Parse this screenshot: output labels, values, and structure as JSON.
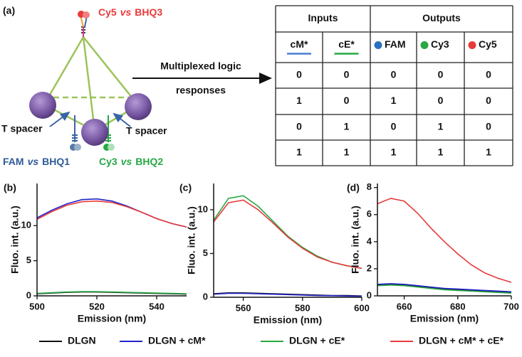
{
  "figure_a": {
    "panel": "(a)",
    "top_probe": [
      "Cy5",
      "vs",
      "BHQ3"
    ],
    "left_probe": [
      "FAM",
      "vs",
      "BHQ1"
    ],
    "right_probe": [
      "Cy3",
      "vs",
      "BHQ2"
    ],
    "spacer_left": "T spacer",
    "spacer_right": "T spacer",
    "arrow_label": [
      "Multiplexed logic",
      "responses"
    ]
  },
  "table": {
    "groups": [
      "Inputs",
      "Outputs"
    ],
    "columns": [
      "cM*",
      "cE*",
      "FAM",
      "Cy3",
      "Cy5"
    ],
    "rows": [
      [
        0,
        0,
        0,
        0,
        0
      ],
      [
        1,
        0,
        1,
        0,
        0
      ],
      [
        0,
        1,
        0,
        1,
        0
      ],
      [
        1,
        1,
        1,
        1,
        1
      ]
    ]
  },
  "chart_data": [
    {
      "type": "line",
      "panel": "(b)",
      "xlabel": "Emission (nm)",
      "ylabel": "Fluo. int. (a.u.)",
      "x": [
        500,
        505,
        510,
        515,
        520,
        525,
        530,
        535,
        540,
        545,
        550
      ],
      "xlim": [
        500,
        550
      ],
      "xticks": [
        500,
        520,
        540
      ],
      "ylim": [
        0,
        16
      ],
      "yticks": [
        0,
        5,
        10
      ],
      "series": [
        {
          "name": "DLGN",
          "color": "#111111",
          "values": [
            0.3,
            0.4,
            0.5,
            0.55,
            0.55,
            0.5,
            0.45,
            0.4,
            0.35,
            0.3,
            0.25
          ]
        },
        {
          "name": "DLGN + cM*",
          "color": "#2323c8",
          "values": [
            11.1,
            12.2,
            13.1,
            13.7,
            13.8,
            13.5,
            12.8,
            11.9,
            11.0,
            10.3,
            9.8
          ]
        },
        {
          "name": "DLGN + cE*",
          "color": "#27a844",
          "values": [
            0.35,
            0.45,
            0.55,
            0.6,
            0.6,
            0.55,
            0.5,
            0.45,
            0.4,
            0.35,
            0.3
          ]
        },
        {
          "name": "DLGN + cM* + cE*",
          "color": "#e83a3a",
          "values": [
            10.9,
            12.0,
            12.9,
            13.4,
            13.5,
            13.3,
            12.7,
            11.9,
            11.0,
            10.3,
            9.8
          ]
        }
      ]
    },
    {
      "type": "line",
      "panel": "(c)",
      "xlabel": "Emission (nm)",
      "ylabel": "Fluo. int. (a.u.)",
      "x": [
        550,
        555,
        560,
        565,
        570,
        575,
        580,
        585,
        590,
        595,
        600
      ],
      "xlim": [
        550,
        600
      ],
      "xticks": [
        560,
        580,
        600
      ],
      "ylim": [
        0,
        13
      ],
      "yticks": [
        0,
        5,
        10
      ],
      "series": [
        {
          "color": "#111111",
          "values": [
            0.4,
            0.5,
            0.5,
            0.45,
            0.4,
            0.35,
            0.3,
            0.25,
            0.2,
            0.2,
            0.15
          ]
        },
        {
          "color": "#2323c8",
          "values": [
            0.35,
            0.45,
            0.45,
            0.4,
            0.35,
            0.3,
            0.25,
            0.2,
            0.18,
            0.15,
            0.12
          ]
        },
        {
          "color": "#27a844",
          "values": [
            8.8,
            11.3,
            11.6,
            10.4,
            8.7,
            7.0,
            5.7,
            4.7,
            4.0,
            3.6,
            3.3
          ]
        },
        {
          "color": "#e83a3a",
          "values": [
            8.6,
            10.8,
            11.1,
            10.0,
            8.5,
            6.9,
            5.6,
            4.6,
            4.0,
            3.6,
            3.3
          ]
        }
      ]
    },
    {
      "type": "line",
      "panel": "(d)",
      "xlabel": "Emission (nm)",
      "ylabel": "Fluo. int. (a.u.)",
      "x": [
        650,
        655,
        660,
        665,
        670,
        675,
        680,
        685,
        690,
        695,
        700
      ],
      "xlim": [
        650,
        700
      ],
      "xticks": [
        660,
        680,
        700
      ],
      "ylim": [
        0,
        8.3
      ],
      "yticks": [
        0,
        2,
        4,
        6,
        8
      ],
      "series": [
        {
          "color": "#111111",
          "values": [
            0.8,
            0.85,
            0.8,
            0.7,
            0.6,
            0.5,
            0.45,
            0.4,
            0.35,
            0.3,
            0.25
          ]
        },
        {
          "color": "#2323c8",
          "values": [
            0.85,
            0.9,
            0.85,
            0.75,
            0.65,
            0.55,
            0.5,
            0.45,
            0.4,
            0.35,
            0.3
          ]
        },
        {
          "color": "#27a844",
          "values": [
            0.75,
            0.8,
            0.75,
            0.65,
            0.55,
            0.45,
            0.4,
            0.35,
            0.3,
            0.25,
            0.2
          ]
        },
        {
          "color": "#e83a3a",
          "values": [
            6.8,
            7.2,
            7.0,
            6.1,
            5.0,
            4.0,
            3.1,
            2.3,
            1.7,
            1.3,
            1.0
          ]
        }
      ]
    }
  ]
}
